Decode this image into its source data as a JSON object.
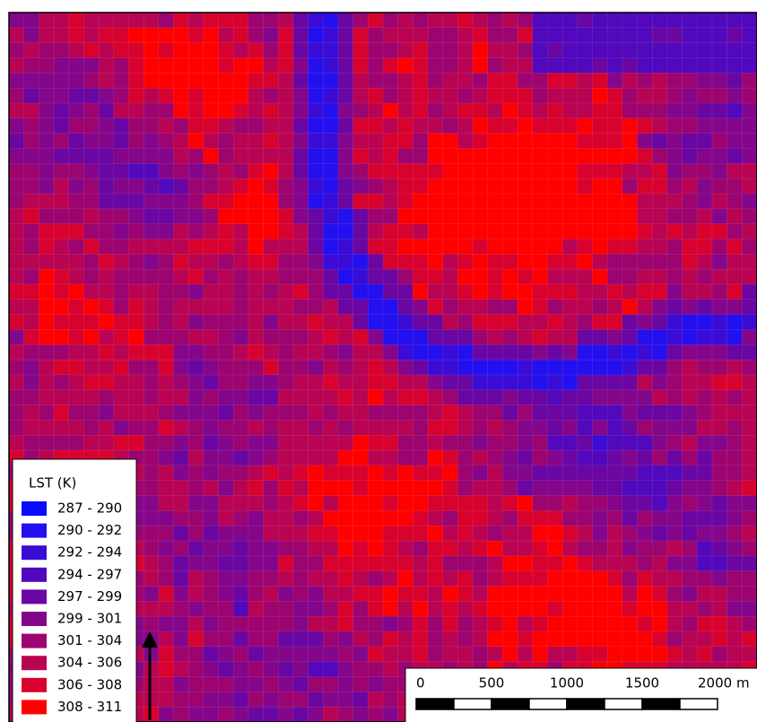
{
  "legend": {
    "title": "LST (K)",
    "items": [
      {
        "label": "287 - 290",
        "color": "#0a0aff"
      },
      {
        "label": "290 - 292",
        "color": "#2410ee"
      },
      {
        "label": "292 - 294",
        "color": "#3a0cd6"
      },
      {
        "label": "294 - 297",
        "color": "#5208bc"
      },
      {
        "label": "297 - 299",
        "color": "#6a06a2"
      },
      {
        "label": "299 - 301",
        "color": "#84068a"
      },
      {
        "label": "301 - 304",
        "color": "#9c0470"
      },
      {
        "label": "304 - 306",
        "color": "#b80452"
      },
      {
        "label": "306 - 308",
        "color": "#d8022e"
      },
      {
        "label": "308 - 311",
        "color": "#ff0000"
      }
    ]
  },
  "scale_bar": {
    "labels": [
      "0",
      "500",
      "1000",
      "1500",
      "2000 m"
    ]
  }
}
